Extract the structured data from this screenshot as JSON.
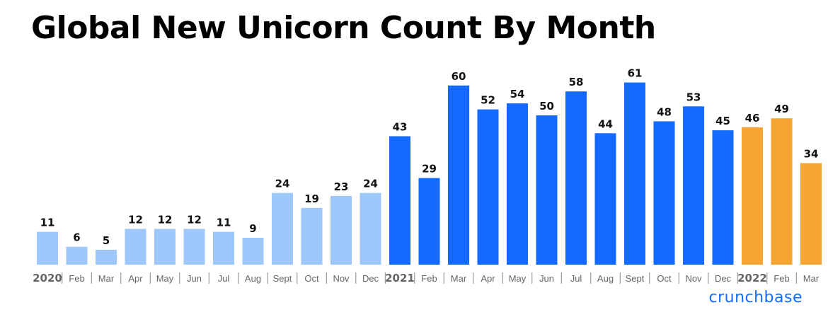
{
  "chart_data": {
    "type": "bar",
    "title": "Global New Unicorn Count By Month",
    "xlabel": "",
    "ylabel": "",
    "ylim": [
      0,
      65
    ],
    "grid": false,
    "categories": [
      "2020",
      "Feb",
      "Mar",
      "Apr",
      "May",
      "Jun",
      "Jul",
      "Aug",
      "Sept",
      "Oct",
      "Nov",
      "Dec",
      "2021",
      "Feb",
      "Mar",
      "Apr",
      "May",
      "Jun",
      "Jul",
      "Aug",
      "Sept",
      "Oct",
      "Nov",
      "Dec",
      "2022",
      "Feb",
      "Mar"
    ],
    "values": [
      11,
      6,
      5,
      12,
      12,
      12,
      11,
      9,
      24,
      19,
      23,
      24,
      43,
      29,
      60,
      52,
      54,
      50,
      58,
      44,
      61,
      48,
      53,
      45,
      46,
      49,
      34
    ],
    "year_colors": {
      "2020": "#9ec8fb",
      "2021": "#146aff",
      "2022": "#f5a533"
    }
  },
  "brand": "crunchbase"
}
